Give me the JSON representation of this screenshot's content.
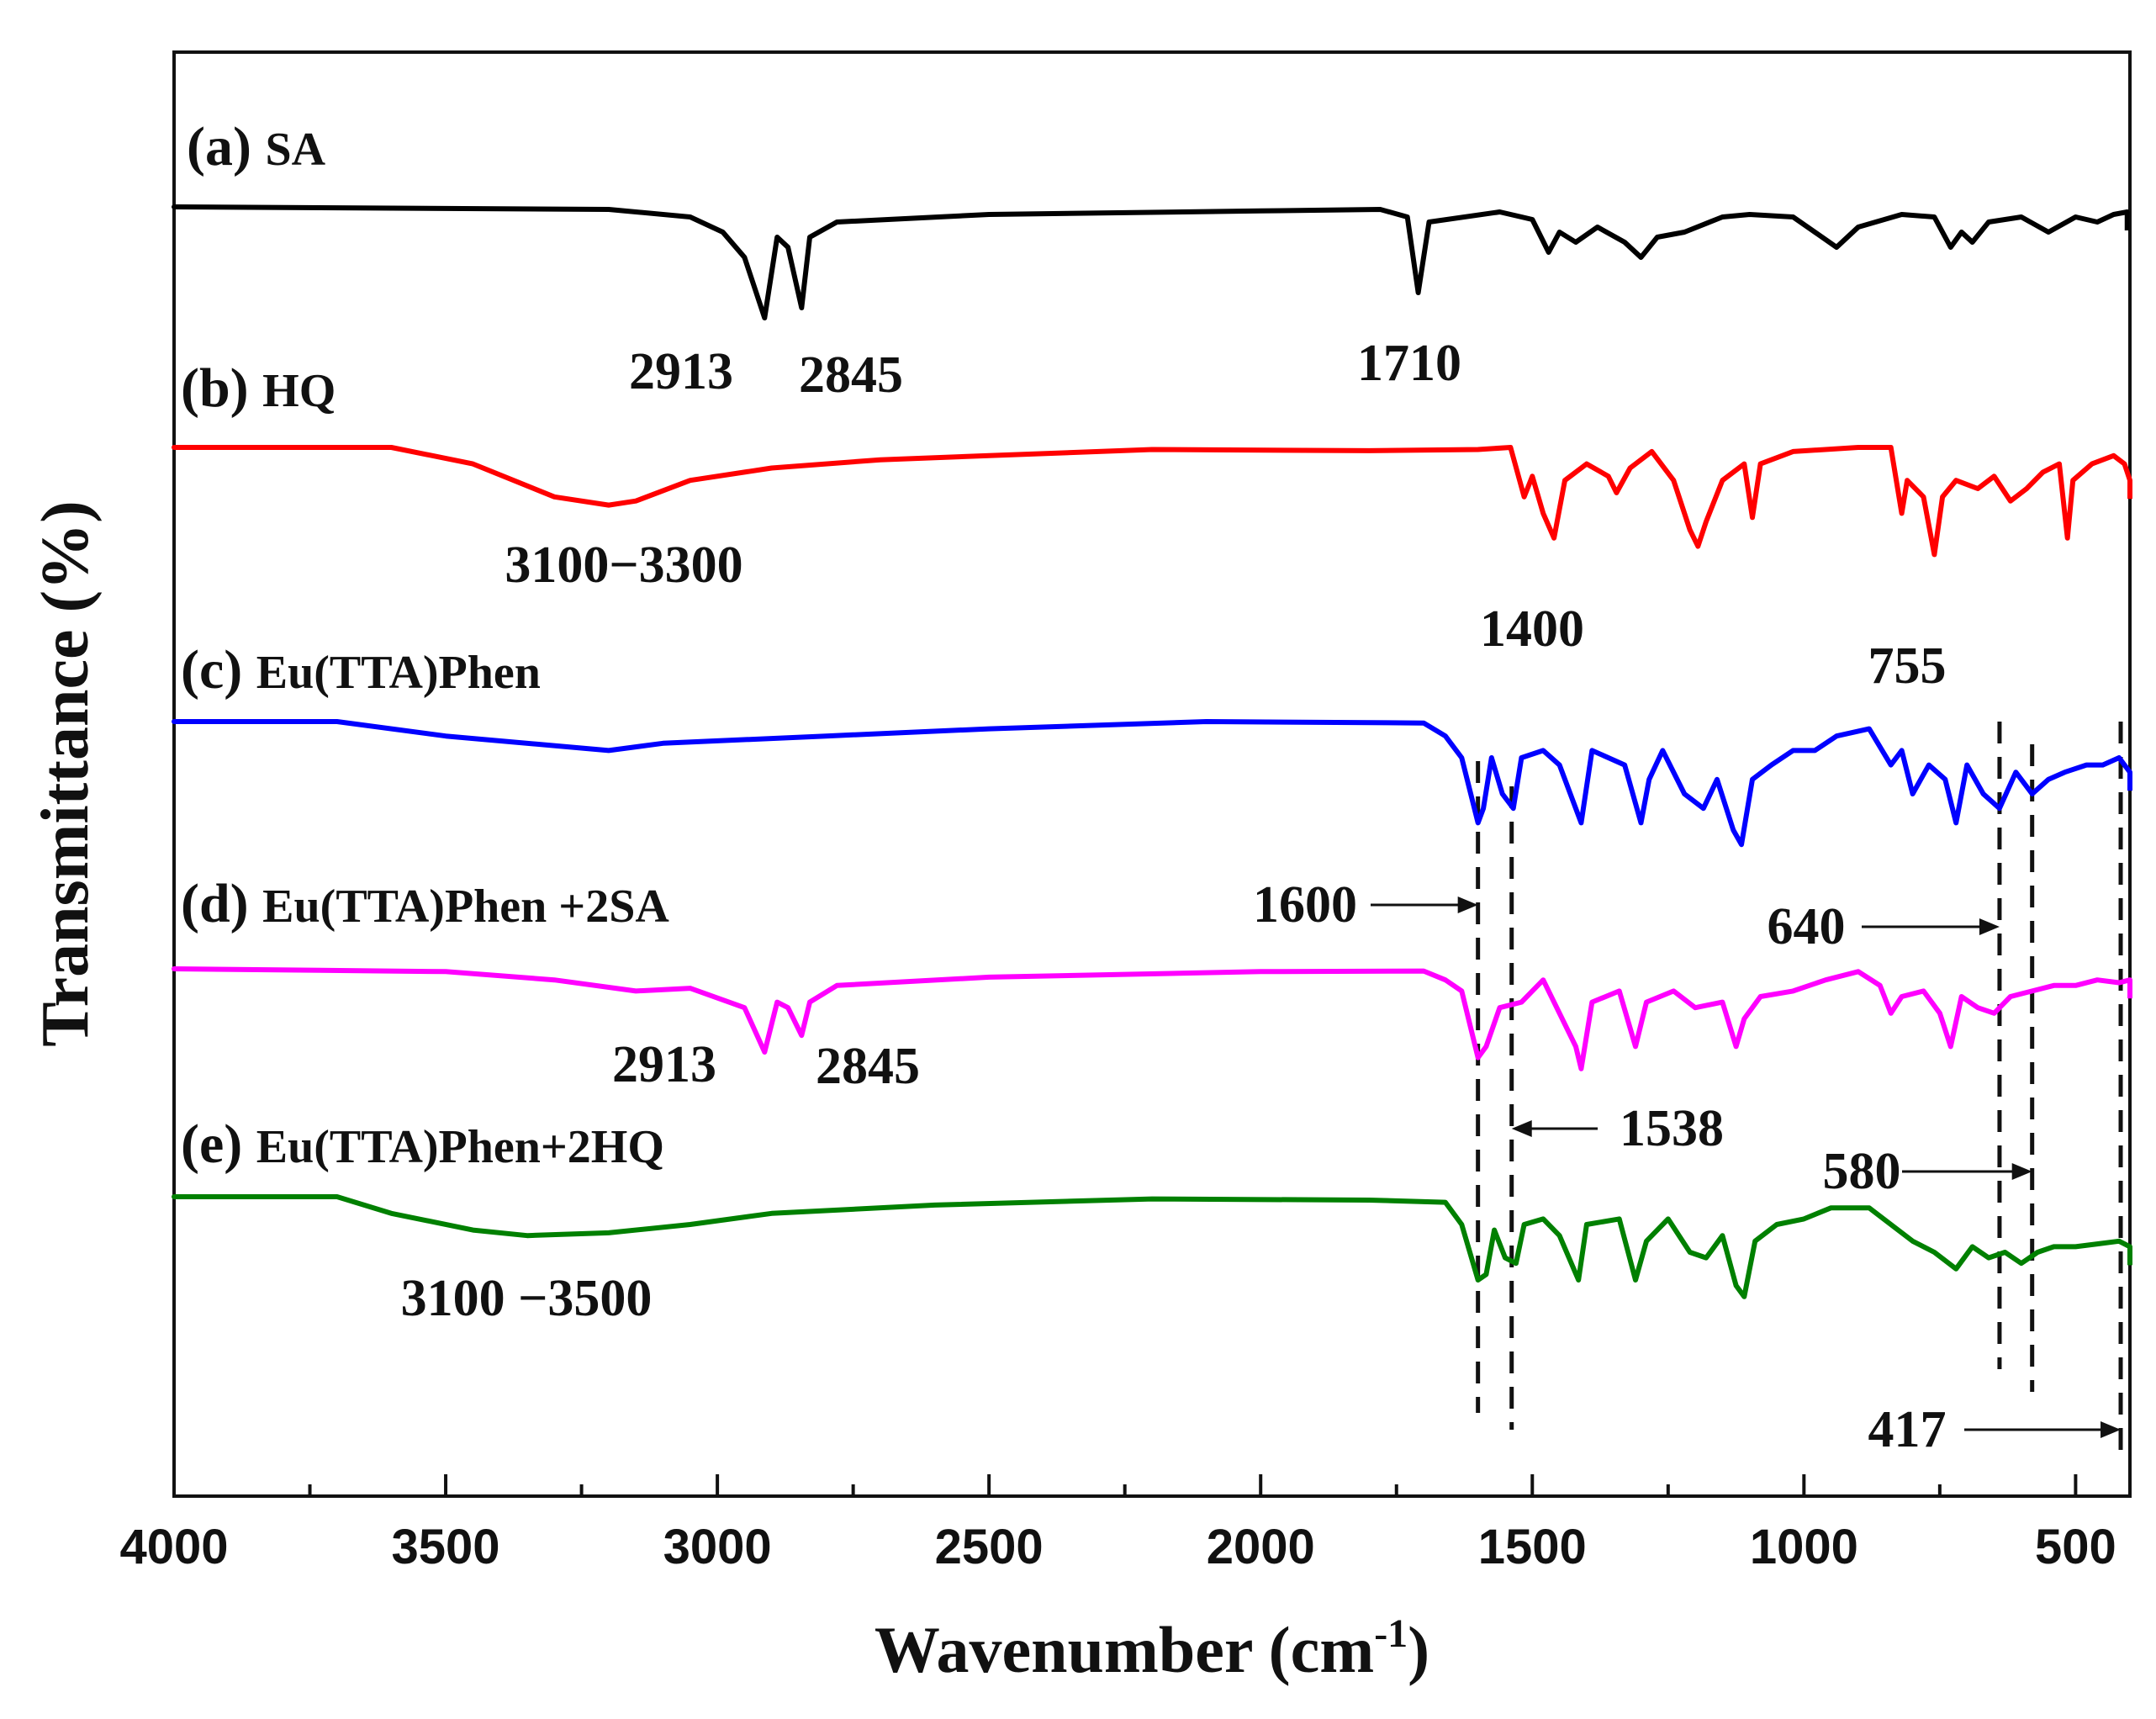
{
  "chart_data": {
    "type": "line",
    "title": "",
    "xlabel": "Wavenumber (cm",
    "xlabel_sup": "-1",
    "xlabel_close": ")",
    "ylabel": "Transmittance (%)",
    "xlim": [
      4000,
      400
    ],
    "x_reversed": true,
    "x_ticks": [
      4000,
      3500,
      3000,
      2500,
      2000,
      1500,
      1000,
      500
    ],
    "x_tick_labels": [
      "4000",
      "3500",
      "3000",
      "2500",
      "2000",
      "1500",
      "1000",
      "500"
    ],
    "y_ticks_shown": false,
    "series": [
      {
        "name": "(a) SA",
        "tag": "(a)",
        "label": "SA",
        "color": "#000000",
        "baseline": 100,
        "points": [
          [
            4000,
            100
          ],
          [
            3200,
            99.5
          ],
          [
            3050,
            98
          ],
          [
            2990,
            95
          ],
          [
            2950,
            90
          ],
          [
            2913,
            78
          ],
          [
            2890,
            94
          ],
          [
            2870,
            92
          ],
          [
            2845,
            80
          ],
          [
            2830,
            94
          ],
          [
            2780,
            97
          ],
          [
            2500,
            98.5
          ],
          [
            2000,
            99.2
          ],
          [
            1780,
            99.5
          ],
          [
            1730,
            98
          ],
          [
            1710,
            83
          ],
          [
            1690,
            97
          ],
          [
            1560,
            99
          ],
          [
            1500,
            97.5
          ],
          [
            1470,
            91
          ],
          [
            1450,
            95
          ],
          [
            1420,
            93
          ],
          [
            1380,
            96
          ],
          [
            1330,
            93
          ],
          [
            1300,
            90
          ],
          [
            1270,
            94
          ],
          [
            1220,
            95
          ],
          [
            1150,
            98
          ],
          [
            1100,
            98.5
          ],
          [
            1020,
            98
          ],
          [
            980,
            95
          ],
          [
            940,
            92
          ],
          [
            900,
            96
          ],
          [
            820,
            98.5
          ],
          [
            760,
            98
          ],
          [
            730,
            92
          ],
          [
            710,
            95
          ],
          [
            690,
            93
          ],
          [
            660,
            97
          ],
          [
            600,
            98
          ],
          [
            550,
            95
          ],
          [
            500,
            98
          ],
          [
            460,
            97
          ],
          [
            430,
            98.5
          ],
          [
            405,
            99
          ]
        ]
      },
      {
        "name": "(b) HQ",
        "tag": "(b)",
        "label": "HQ",
        "color": "#ff0000",
        "baseline": 100,
        "points": [
          [
            4000,
            100
          ],
          [
            3600,
            100
          ],
          [
            3450,
            96
          ],
          [
            3300,
            88
          ],
          [
            3200,
            86
          ],
          [
            3150,
            87
          ],
          [
            3050,
            92
          ],
          [
            2900,
            95
          ],
          [
            2700,
            97
          ],
          [
            2500,
            98
          ],
          [
            2200,
            99.5
          ],
          [
            1800,
            99.2
          ],
          [
            1600,
            99.5
          ],
          [
            1540,
            100
          ],
          [
            1515,
            88
          ],
          [
            1500,
            93
          ],
          [
            1480,
            84
          ],
          [
            1460,
            78
          ],
          [
            1440,
            92
          ],
          [
            1400,
            96
          ],
          [
            1360,
            93
          ],
          [
            1345,
            89
          ],
          [
            1320,
            95
          ],
          [
            1280,
            99
          ],
          [
            1240,
            92
          ],
          [
            1210,
            80
          ],
          [
            1195,
            76
          ],
          [
            1180,
            82
          ],
          [
            1150,
            92
          ],
          [
            1110,
            96
          ],
          [
            1095,
            83
          ],
          [
            1080,
            96
          ],
          [
            1020,
            99
          ],
          [
            900,
            100
          ],
          [
            840,
            100
          ],
          [
            820,
            84
          ],
          [
            810,
            92
          ],
          [
            780,
            88
          ],
          [
            760,
            74
          ],
          [
            745,
            88
          ],
          [
            720,
            92
          ],
          [
            680,
            90
          ],
          [
            650,
            93
          ],
          [
            620,
            87
          ],
          [
            590,
            90
          ],
          [
            560,
            94
          ],
          [
            530,
            96
          ],
          [
            515,
            78
          ],
          [
            505,
            92
          ],
          [
            470,
            96
          ],
          [
            430,
            98
          ],
          [
            410,
            96
          ],
          [
            400,
            92
          ]
        ]
      },
      {
        "name": "(c) Eu(TTA)Phen",
        "tag": "(c)",
        "label": "Eu(TTA)Phen",
        "color": "#0000ff",
        "baseline": 100,
        "points": [
          [
            4000,
            100
          ],
          [
            3700,
            100
          ],
          [
            3500,
            98
          ],
          [
            3200,
            96
          ],
          [
            3100,
            97
          ],
          [
            2800,
            98
          ],
          [
            2500,
            99
          ],
          [
            2100,
            100
          ],
          [
            1700,
            99.8
          ],
          [
            1660,
            98
          ],
          [
            1630,
            95
          ],
          [
            1600,
            86
          ],
          [
            1590,
            88
          ],
          [
            1575,
            95
          ],
          [
            1555,
            90
          ],
          [
            1535,
            88
          ],
          [
            1520,
            95
          ],
          [
            1480,
            96
          ],
          [
            1450,
            94
          ],
          [
            1410,
            86
          ],
          [
            1390,
            96
          ],
          [
            1330,
            94
          ],
          [
            1300,
            86
          ],
          [
            1285,
            92
          ],
          [
            1260,
            96
          ],
          [
            1220,
            90
          ],
          [
            1185,
            88
          ],
          [
            1160,
            92
          ],
          [
            1130,
            85
          ],
          [
            1115,
            83
          ],
          [
            1095,
            92
          ],
          [
            1060,
            94
          ],
          [
            1020,
            96
          ],
          [
            980,
            96
          ],
          [
            940,
            98
          ],
          [
            880,
            99
          ],
          [
            840,
            94
          ],
          [
            820,
            96
          ],
          [
            800,
            90
          ],
          [
            770,
            94
          ],
          [
            740,
            92
          ],
          [
            720,
            86
          ],
          [
            700,
            94
          ],
          [
            670,
            90
          ],
          [
            640,
            88
          ],
          [
            610,
            93
          ],
          [
            580,
            90
          ],
          [
            550,
            92
          ],
          [
            520,
            93
          ],
          [
            480,
            94
          ],
          [
            450,
            94
          ],
          [
            420,
            95
          ],
          [
            400,
            93
          ]
        ]
      },
      {
        "name": "(d) Eu(TTA)Phen +2SA",
        "tag": "(d)",
        "label": "Eu(TTA)Phen +2SA",
        "color": "#ff00ff",
        "baseline": 100,
        "points": [
          [
            4000,
            100
          ],
          [
            3500,
            99.5
          ],
          [
            3300,
            98
          ],
          [
            3150,
            96
          ],
          [
            3050,
            96.5
          ],
          [
            2950,
            93
          ],
          [
            2913,
            85
          ],
          [
            2890,
            94
          ],
          [
            2870,
            93
          ],
          [
            2845,
            88
          ],
          [
            2830,
            94
          ],
          [
            2780,
            97
          ],
          [
            2500,
            98.5
          ],
          [
            2000,
            99.5
          ],
          [
            1700,
            99.6
          ],
          [
            1660,
            98
          ],
          [
            1630,
            96
          ],
          [
            1600,
            84
          ],
          [
            1585,
            86
          ],
          [
            1560,
            93
          ],
          [
            1520,
            94
          ],
          [
            1480,
            98
          ],
          [
            1450,
            92
          ],
          [
            1420,
            86
          ],
          [
            1410,
            82
          ],
          [
            1390,
            94
          ],
          [
            1340,
            96
          ],
          [
            1310,
            86
          ],
          [
            1290,
            94
          ],
          [
            1240,
            96
          ],
          [
            1200,
            93
          ],
          [
            1150,
            94
          ],
          [
            1125,
            86
          ],
          [
            1110,
            91
          ],
          [
            1080,
            95
          ],
          [
            1020,
            96
          ],
          [
            960,
            98
          ],
          [
            900,
            99.5
          ],
          [
            860,
            97
          ],
          [
            840,
            92
          ],
          [
            820,
            95
          ],
          [
            780,
            96
          ],
          [
            750,
            92
          ],
          [
            730,
            86
          ],
          [
            710,
            95
          ],
          [
            680,
            93
          ],
          [
            650,
            92
          ],
          [
            620,
            95
          ],
          [
            580,
            96
          ],
          [
            540,
            97
          ],
          [
            500,
            97
          ],
          [
            460,
            98
          ],
          [
            420,
            97.5
          ],
          [
            400,
            98
          ]
        ]
      },
      {
        "name": "(e) Eu(TTA)Phen+2HQ",
        "tag": "(e)",
        "label": "Eu(TTA)Phen+2HQ",
        "color": "#008000",
        "baseline": 100,
        "points": [
          [
            4000,
            100
          ],
          [
            3700,
            100
          ],
          [
            3600,
            97
          ],
          [
            3450,
            94
          ],
          [
            3350,
            93
          ],
          [
            3200,
            93.5
          ],
          [
            3050,
            95
          ],
          [
            2900,
            97
          ],
          [
            2600,
            98.5
          ],
          [
            2200,
            99.6
          ],
          [
            1800,
            99.4
          ],
          [
            1660,
            99
          ],
          [
            1630,
            95
          ],
          [
            1600,
            85
          ],
          [
            1585,
            86
          ],
          [
            1570,
            94
          ],
          [
            1550,
            89
          ],
          [
            1530,
            88
          ],
          [
            1515,
            95
          ],
          [
            1480,
            96
          ],
          [
            1450,
            93
          ],
          [
            1415,
            85
          ],
          [
            1400,
            95
          ],
          [
            1340,
            96
          ],
          [
            1310,
            85
          ],
          [
            1290,
            92
          ],
          [
            1250,
            96
          ],
          [
            1210,
            90
          ],
          [
            1180,
            89
          ],
          [
            1150,
            93
          ],
          [
            1125,
            84
          ],
          [
            1110,
            82
          ],
          [
            1090,
            92
          ],
          [
            1050,
            95
          ],
          [
            1000,
            96
          ],
          [
            950,
            98
          ],
          [
            880,
            98
          ],
          [
            840,
            95
          ],
          [
            800,
            92
          ],
          [
            760,
            90
          ],
          [
            720,
            87
          ],
          [
            690,
            91
          ],
          [
            660,
            89
          ],
          [
            630,
            90
          ],
          [
            600,
            88
          ],
          [
            570,
            90
          ],
          [
            540,
            91
          ],
          [
            500,
            91
          ],
          [
            460,
            91.5
          ],
          [
            420,
            92
          ],
          [
            400,
            91
          ]
        ]
      }
    ],
    "annotations": [
      {
        "text": "2913",
        "series": "(a) SA"
      },
      {
        "text": "2845",
        "series": "(a) SA"
      },
      {
        "text": "1710",
        "series": "(a) SA"
      },
      {
        "text": "3100−3300",
        "series": "(b) HQ"
      },
      {
        "text": "1400",
        "series": "(b) HQ"
      },
      {
        "text": "755",
        "series": "(b) HQ"
      },
      {
        "text": "1600",
        "series": "marker",
        "x": 1600
      },
      {
        "text": "640",
        "series": "marker",
        "x": 640
      },
      {
        "text": "2913",
        "series": "(d) Eu(TTA)Phen +2SA"
      },
      {
        "text": "2845",
        "series": "(d) Eu(TTA)Phen +2SA"
      },
      {
        "text": "1538",
        "series": "marker",
        "x": 1538
      },
      {
        "text": "580",
        "series": "marker",
        "x": 580
      },
      {
        "text": "3100 −3500",
        "series": "(e) Eu(TTA)Phen+2HQ"
      },
      {
        "text": "417",
        "series": "marker",
        "x": 417
      }
    ],
    "reference_lines_x": [
      1600,
      1538,
      640,
      580,
      417
    ]
  }
}
